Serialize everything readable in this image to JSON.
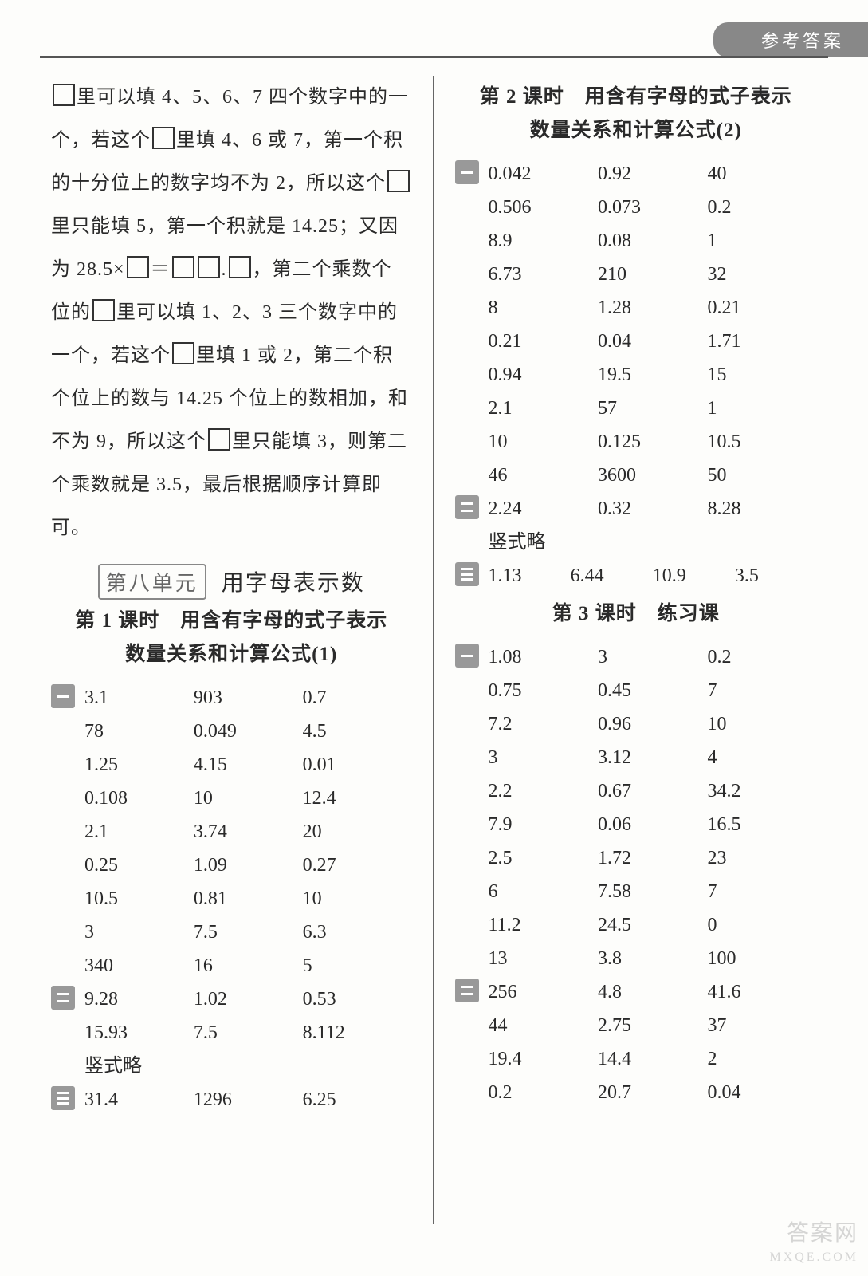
{
  "header_tab": "参考答案",
  "explanation": {
    "parts": [
      {
        "t": "box"
      },
      {
        "t": "txt",
        "v": "里可以填 4、5、6、7 四个数字中的一个，若这个"
      },
      {
        "t": "box"
      },
      {
        "t": "txt",
        "v": "里填 4、6 或 7，第一个积的十分位上的数字均不为 2，所以这个"
      },
      {
        "t": "box"
      },
      {
        "t": "txt",
        "v": "里只能填 5，第一个积就是 14.25；又因为 28.5×"
      },
      {
        "t": "box"
      },
      {
        "t": "txt",
        "v": "＝"
      },
      {
        "t": "box"
      },
      {
        "t": "box"
      },
      {
        "t": "txt",
        "v": "."
      },
      {
        "t": "box"
      },
      {
        "t": "txt",
        "v": "，第二个乘数个位的"
      },
      {
        "t": "box"
      },
      {
        "t": "txt",
        "v": "里可以填 1、2、3 三个数字中的一个，若这个"
      },
      {
        "t": "box"
      },
      {
        "t": "txt",
        "v": "里填 1 或 2，第二个积个位上的数与 14.25 个位上的数相加，和不为 9，所以这个"
      },
      {
        "t": "box"
      },
      {
        "t": "txt",
        "v": "里只能填 3，则第二个乘数就是 3.5，最后根据顺序计算即可。"
      }
    ]
  },
  "unit8": {
    "badge": "第八单元",
    "title": "用字母表示数"
  },
  "lesson1": {
    "title_l1": "第 1 课时　用含有字母的式子表示",
    "title_l2": "数量关系和计算公式(1)",
    "sec1": [
      [
        "3.1",
        "903",
        "0.7"
      ],
      [
        "78",
        "0.049",
        "4.5"
      ],
      [
        "1.25",
        "4.15",
        "0.01"
      ],
      [
        "0.108",
        "10",
        "12.4"
      ],
      [
        "2.1",
        "3.74",
        "20"
      ],
      [
        "0.25",
        "1.09",
        "0.27"
      ],
      [
        "10.5",
        "0.81",
        "10"
      ],
      [
        "3",
        "7.5",
        "6.3"
      ],
      [
        "340",
        "16",
        "5"
      ]
    ],
    "sec2": [
      [
        "9.28",
        "1.02",
        "0.53"
      ],
      [
        "15.93",
        "7.5",
        "8.112"
      ]
    ],
    "sec2_note": "竖式略",
    "sec3": [
      [
        "31.4",
        "1296",
        "6.25"
      ]
    ]
  },
  "lesson2": {
    "title_l1": "第 2 课时　用含有字母的式子表示",
    "title_l2": "数量关系和计算公式(2)",
    "sec1": [
      [
        "0.042",
        "0.92",
        "40"
      ],
      [
        "0.506",
        "0.073",
        "0.2"
      ],
      [
        "8.9",
        "0.08",
        "1"
      ],
      [
        "6.73",
        "210",
        "32"
      ],
      [
        "8",
        "1.28",
        "0.21"
      ],
      [
        "0.21",
        "0.04",
        "1.71"
      ],
      [
        "0.94",
        "19.5",
        "15"
      ],
      [
        "2.1",
        "57",
        "1"
      ],
      [
        "10",
        "0.125",
        "10.5"
      ],
      [
        "46",
        "3600",
        "50"
      ]
    ],
    "sec2": [
      [
        "2.24",
        "0.32",
        "8.28"
      ]
    ],
    "sec2_note": "竖式略",
    "sec3": [
      [
        "1.13",
        "6.44",
        "10.9",
        "3.5"
      ]
    ]
  },
  "lesson3": {
    "title": "第 3 课时　练习课",
    "sec1": [
      [
        "1.08",
        "3",
        "0.2"
      ],
      [
        "0.75",
        "0.45",
        "7"
      ],
      [
        "7.2",
        "0.96",
        "10"
      ],
      [
        "3",
        "3.12",
        "4"
      ],
      [
        "2.2",
        "0.67",
        "34.2"
      ],
      [
        "7.9",
        "0.06",
        "16.5"
      ],
      [
        "2.5",
        "1.72",
        "23"
      ],
      [
        "6",
        "7.58",
        "7"
      ],
      [
        "11.2",
        "24.5",
        "0"
      ],
      [
        "13",
        "3.8",
        "100"
      ]
    ],
    "sec2": [
      [
        "256",
        "4.8",
        "41.6"
      ],
      [
        "44",
        "2.75",
        "37"
      ],
      [
        "19.4",
        "14.4",
        "2"
      ],
      [
        "0.2",
        "20.7",
        "0.04"
      ]
    ]
  },
  "watermark_main": "答案网",
  "watermark_sub": "MXQE.COM"
}
